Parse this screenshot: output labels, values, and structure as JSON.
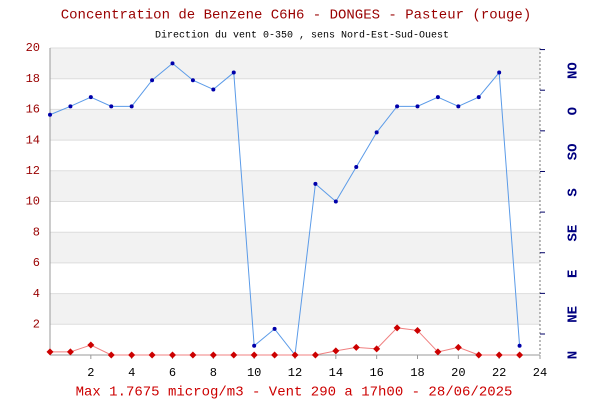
{
  "chart_data": {
    "type": "line",
    "title": "Concentration de Benzene C6H6  -   DONGES - Pasteur (rouge)",
    "subtitle": "Direction du vent 0-350 , sens Nord-Est-Sud-Ouest",
    "footer": "Max 1.7675 microg/m3 - Vent 290  a 17h00 - 28/06/2025",
    "x": [
      0,
      1,
      2,
      3,
      4,
      5,
      6,
      7,
      8,
      9,
      10,
      11,
      12,
      13,
      14,
      15,
      16,
      17,
      18,
      19,
      20,
      21,
      22,
      23
    ],
    "xlim": [
      0,
      24
    ],
    "xticks": [
      2,
      4,
      6,
      8,
      10,
      12,
      14,
      16,
      18,
      20,
      22,
      24
    ],
    "ylim": [
      0,
      20
    ],
    "yticks": [
      2,
      4,
      6,
      8,
      10,
      12,
      14,
      16,
      18,
      20
    ],
    "y2lim": [
      0,
      340
    ],
    "y2ticks": [
      {
        "value": 0,
        "label": "N"
      },
      {
        "value": 45,
        "label": "NE"
      },
      {
        "value": 90,
        "label": "E"
      },
      {
        "value": 135,
        "label": "SE"
      },
      {
        "value": 180,
        "label": "S"
      },
      {
        "value": 225,
        "label": "SO"
      },
      {
        "value": 270,
        "label": "O"
      },
      {
        "value": 315,
        "label": "NO"
      }
    ],
    "grid": true,
    "series": [
      {
        "color": "#5b9be8",
        "marker_color": "#0000aa",
        "marker": "dot",
        "values": [
          15.65,
          16.2,
          16.8,
          16.2,
          16.2,
          17.9,
          19.0,
          17.9,
          17.3,
          18.4,
          0.6,
          1.7,
          0,
          11.15,
          10.0,
          12.25,
          14.5,
          16.2,
          16.2,
          16.8,
          16.2,
          16.8,
          18.4,
          0.6
        ]
      },
      {
        "color": "#f08080",
        "marker_color": "#cc0000",
        "marker": "diamond",
        "values": [
          0.2,
          0.2,
          0.65,
          0,
          0,
          0,
          0,
          0,
          0,
          0,
          0,
          0,
          0,
          0,
          0.27,
          0.5,
          0.4,
          1.77,
          1.6,
          0.2,
          0.5,
          0,
          0,
          0
        ]
      }
    ]
  }
}
